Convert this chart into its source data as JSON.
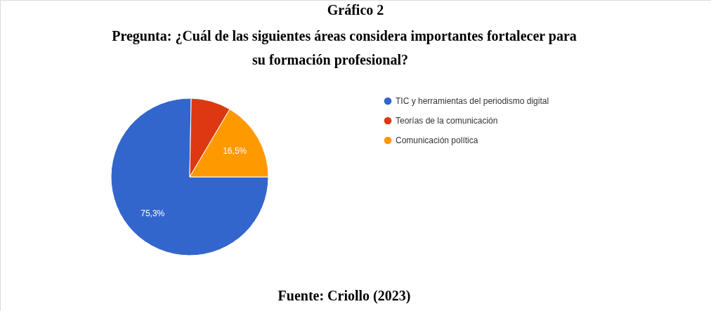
{
  "chart_data": {
    "type": "pie",
    "title": "Gráfico 2",
    "subtitle": "Pregunta: ¿Cuál de las siguientes áreas considera importantes fortalecer para su formación profesional?",
    "categories": [
      "TIC y herramientas del periodismo digital",
      "Teorías de la comunicación",
      "Comunicación política"
    ],
    "values": [
      75.3,
      8.2,
      16.5
    ],
    "colors": [
      "#3366cc",
      "#dc3912",
      "#ff9900"
    ],
    "value_labels": [
      "75,3%",
      null,
      "16,5%"
    ],
    "legend": "right",
    "annotations": [
      "Fuente: Criollo (2023)"
    ]
  }
}
